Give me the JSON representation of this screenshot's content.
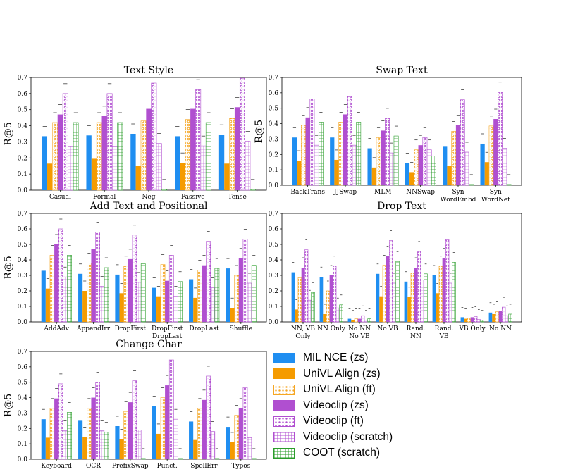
{
  "chart_data": [
    {
      "type": "bar",
      "title": "Text Style",
      "ylabel": "R@5",
      "ylim": [
        0,
        0.7
      ],
      "yticks": [
        "0.0",
        "0.1",
        "0.2",
        "0.3",
        "0.4",
        "0.5",
        "0.6",
        "0.7"
      ],
      "categories": [
        "Casual",
        "Formal",
        "Neg",
        "Passive",
        "Tense"
      ],
      "series": [
        {
          "name": "MIL NCE (zs)",
          "values": [
            0.335,
            0.34,
            0.35,
            0.335,
            0.345
          ]
        },
        {
          "name": "UniVL Align (zs)",
          "values": [
            0.165,
            0.195,
            0.15,
            0.17,
            0.165
          ]
        },
        {
          "name": "UniVL Align (ft)",
          "values": [
            0.42,
            0.42,
            0.43,
            0.44,
            0.445
          ]
        },
        {
          "name": "Videoclip (zs)",
          "values": [
            0.47,
            0.46,
            0.505,
            0.505,
            0.515
          ]
        },
        {
          "name": "Videoclip (ft)",
          "values": [
            0.6,
            0.6,
            0.665,
            0.625,
            0.695
          ]
        },
        {
          "name": "Videoclip (scratch)",
          "values": [
            0.27,
            0.27,
            0.29,
            0.275,
            0.305
          ]
        },
        {
          "name": "COOT (scratch)",
          "values": [
            0.42,
            0.42,
            0.005,
            0.42,
            0.005
          ]
        }
      ]
    },
    {
      "type": "bar",
      "title": "Swap Text",
      "ylabel": "R@5",
      "ylim": [
        0,
        0.7
      ],
      "yticks": [
        "0.0",
        "0.1",
        "0.2",
        "0.3",
        "0.4",
        "0.5",
        "0.6",
        "0.7"
      ],
      "categories": [
        "BackTrans",
        "JJSwap",
        "MLM",
        "NNSwap",
        "Syn\nWordEmbd",
        "Syn\nWordNet"
      ],
      "series": [
        {
          "name": "MIL NCE (zs)",
          "values": [
            0.31,
            0.31,
            0.24,
            0.145,
            0.25,
            0.27
          ]
        },
        {
          "name": "UniVL Align (zs)",
          "values": [
            0.16,
            0.165,
            0.115,
            0.085,
            0.125,
            0.15
          ]
        },
        {
          "name": "UniVL Align (ft)",
          "values": [
            0.39,
            0.41,
            0.31,
            0.23,
            0.35,
            0.385
          ]
        },
        {
          "name": "Videoclip (zs)",
          "values": [
            0.44,
            0.46,
            0.355,
            0.26,
            0.39,
            0.43
          ]
        },
        {
          "name": "Videoclip (ft)",
          "values": [
            0.56,
            0.575,
            0.435,
            0.31,
            0.555,
            0.605
          ]
        },
        {
          "name": "Videoclip (scratch)",
          "values": [
            0.26,
            0.26,
            0.21,
            0.23,
            0.215,
            0.24
          ]
        },
        {
          "name": "COOT (scratch)",
          "values": [
            0.41,
            0.41,
            0.32,
            0.19,
            0.005,
            0.005
          ]
        }
      ]
    },
    {
      "type": "bar",
      "title": "Add Text and Positional",
      "ylabel": "R@5",
      "ylim": [
        0,
        0.7
      ],
      "yticks": [
        "0.0",
        "0.1",
        "0.2",
        "0.3",
        "0.4",
        "0.5",
        "0.6",
        "0.7"
      ],
      "categories": [
        "AddAdv",
        "AppendIrr",
        "DropFirst",
        "DropFirst\nDropLast",
        "DropLast",
        "Shuffle"
      ],
      "series": [
        {
          "name": "MIL NCE (zs)",
          "values": [
            0.33,
            0.31,
            0.305,
            0.22,
            0.275,
            0.345
          ]
        },
        {
          "name": "UniVL Align (zs)",
          "values": [
            0.215,
            0.2,
            0.185,
            0.165,
            0.155,
            0.09
          ]
        },
        {
          "name": "UniVL Align (ft)",
          "values": [
            0.43,
            0.38,
            0.36,
            0.37,
            0.335,
            0.3
          ]
        },
        {
          "name": "Videoclip (zs)",
          "values": [
            0.5,
            0.47,
            0.405,
            0.265,
            0.365,
            0.41
          ]
        },
        {
          "name": "Videoclip (ft)",
          "values": [
            0.6,
            0.58,
            0.56,
            0.43,
            0.52,
            0.535
          ]
        },
        {
          "name": "Videoclip (scratch)",
          "values": [
            0.29,
            0.23,
            0.255,
            0.165,
            0.22,
            0.25
          ]
        },
        {
          "name": "COOT (scratch)",
          "values": [
            0.43,
            0.35,
            0.375,
            0.26,
            0.345,
            0.365
          ]
        }
      ]
    },
    {
      "type": "bar",
      "title": "Drop Text",
      "ylabel": "",
      "ylim": [
        0,
        0.7
      ],
      "yticks": [
        "0.0",
        "0.1",
        "0.2",
        "0.3",
        "0.4",
        "0.5",
        "0.6",
        "0.7"
      ],
      "categories": [
        "NN, VB\nOnly",
        "NN Only",
        "No NN\nNo VB",
        "No VB",
        "Rand.\nNN",
        "Rand.\nVB",
        "VB Only",
        "No NN"
      ],
      "series": [
        {
          "name": "MIL NCE (zs)",
          "values": [
            0.32,
            0.29,
            0.02,
            0.31,
            0.26,
            0.3,
            0.03,
            0.06
          ]
        },
        {
          "name": "UniVL Align (zs)",
          "values": [
            0.08,
            0.05,
            0.01,
            0.165,
            0.16,
            0.185,
            0.02,
            0.05
          ]
        },
        {
          "name": "UniVL Align (ft)",
          "values": [
            0.285,
            0.2,
            0.02,
            0.365,
            0.315,
            0.36,
            0.025,
            0.065
          ]
        },
        {
          "name": "Videoclip (zs)",
          "values": [
            0.35,
            0.3,
            0.02,
            0.425,
            0.35,
            0.41,
            0.03,
            0.07
          ]
        },
        {
          "name": "Videoclip (ft)",
          "values": [
            0.465,
            0.36,
            0.04,
            0.525,
            0.455,
            0.53,
            0.035,
            0.095
          ]
        },
        {
          "name": "Videoclip (scratch)",
          "values": [
            0.14,
            0.09,
            0.01,
            0.25,
            0.27,
            0.25,
            0.015,
            0.04
          ]
        },
        {
          "name": "COOT (scratch)",
          "values": [
            0.19,
            0.11,
            0.02,
            0.39,
            0.31,
            0.385,
            0.01,
            0.05
          ]
        }
      ]
    },
    {
      "type": "bar",
      "title": "Change Char",
      "ylabel": "R@5",
      "ylim": [
        0,
        0.7
      ],
      "yticks": [
        "0.0",
        "0.1",
        "0.2",
        "0.3",
        "0.4",
        "0.5",
        "0.6",
        "0.7"
      ],
      "categories": [
        "Keyboard",
        "OCR",
        "PrefixSwap",
        "Punct.",
        "SpellErr",
        "Typos"
      ],
      "series": [
        {
          "name": "MIL NCE (zs)",
          "values": [
            0.26,
            0.25,
            0.215,
            0.345,
            0.245,
            0.21
          ]
        },
        {
          "name": "UniVL Align (zs)",
          "values": [
            0.14,
            0.145,
            0.13,
            0.165,
            0.125,
            0.11
          ]
        },
        {
          "name": "UniVL Align (ft)",
          "values": [
            0.33,
            0.33,
            0.31,
            0.4,
            0.33,
            0.285
          ]
        },
        {
          "name": "Videoclip (zs)",
          "values": [
            0.395,
            0.4,
            0.37,
            0.48,
            0.385,
            0.33
          ]
        },
        {
          "name": "Videoclip (ft)",
          "values": [
            0.49,
            0.5,
            0.51,
            0.645,
            0.54,
            0.465
          ]
        },
        {
          "name": "Videoclip (scratch)",
          "values": [
            0.185,
            0.185,
            0.19,
            0.26,
            0.18,
            0.14
          ]
        },
        {
          "name": "COOT (scratch)",
          "values": [
            0.305,
            0.175,
            0.005,
            0.005,
            0.005,
            0.005
          ]
        }
      ]
    }
  ],
  "legend": {
    "items": [
      {
        "label": "MIL NCE (zs)",
        "color": "#1f8ef1",
        "style": "solid"
      },
      {
        "label": "UniVL Align (zs)",
        "color": "#f59b00",
        "style": "solid"
      },
      {
        "label": "UniVL Align (ft)",
        "color": "#f5a623",
        "style": "dots"
      },
      {
        "label": "Videoclip (zs)",
        "color": "#b04fd0",
        "style": "solid"
      },
      {
        "label": "Videoclip (ft)",
        "color": "#b04fd0",
        "style": "dots"
      },
      {
        "label": "Videoclip (scratch)",
        "color": "#b04fd0",
        "style": "grid"
      },
      {
        "label": "COOT (scratch)",
        "color": "#2a9d2a",
        "style": "grid"
      }
    ]
  }
}
